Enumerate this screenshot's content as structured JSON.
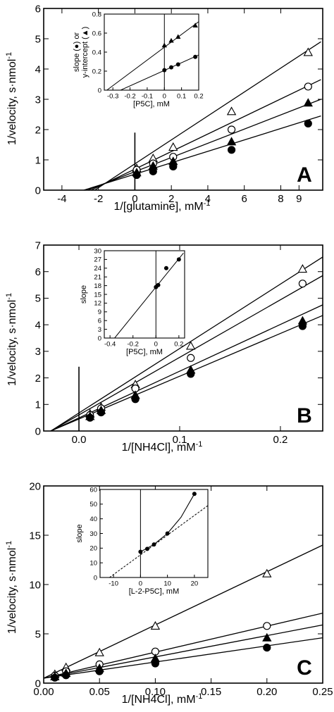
{
  "chart_data": [
    {
      "panel": "A",
      "type": "line",
      "xlabel": "1/[glutamine], mM",
      "xlabel_sup": "-1",
      "ylabel": "1/velocity, s·nmol",
      "ylabel_sup": "-1",
      "xlim": [
        -5,
        10.3
      ],
      "ylim": [
        0,
        6
      ],
      "xticks": [
        -4,
        -2,
        0,
        2,
        4,
        6,
        8
      ],
      "extra_xtick": 9,
      "yticks": [
        0,
        1,
        2,
        3,
        4,
        5,
        6
      ],
      "series": [
        {
          "marker": "open-triangle",
          "x": [
            0.1,
            1,
            2.1,
            5.3,
            9.5
          ],
          "y": [
            0.72,
            1.05,
            1.42,
            2.6,
            4.55
          ],
          "line": [
            [
              -2.2,
              0
            ],
            [
              10.2,
              4.9
            ]
          ]
        },
        {
          "marker": "open-circle",
          "x": [
            0.1,
            1,
            2.1,
            5.3,
            9.5
          ],
          "y": [
            0.67,
            0.88,
            1.1,
            2.0,
            3.42
          ],
          "line": [
            [
              -2.4,
              0
            ],
            [
              10.2,
              3.65
            ]
          ]
        },
        {
          "marker": "filled-triangle",
          "x": [
            0.1,
            1,
            2.1,
            5.3,
            9.5
          ],
          "y": [
            0.58,
            0.8,
            0.95,
            1.6,
            2.88
          ],
          "line": [
            [
              -2.6,
              0
            ],
            [
              10.2,
              3.0
            ]
          ]
        },
        {
          "marker": "filled-circle",
          "x": [
            0.1,
            1,
            2.1,
            5.3,
            9.5
          ],
          "y": [
            0.5,
            0.62,
            0.78,
            1.33,
            2.2
          ],
          "line": [
            [
              -2.8,
              0
            ],
            [
              10.2,
              2.45
            ]
          ]
        }
      ],
      "inset": {
        "type": "line",
        "xlabel": "[P5C], mM",
        "ylabel_line1": "slope (",
        "ylabel_mid": ") or",
        "ylabel_line2": "y-intercept (",
        "ylabel_end": ")",
        "xlim": [
          -0.35,
          0.2
        ],
        "ylim": [
          0,
          0.8
        ],
        "xticks": [
          -0.3,
          -0.2,
          -0.1,
          0,
          0.1,
          0.2
        ],
        "xticklabels": [
          "-0.3",
          "-0.2",
          "-0.1",
          "0",
          "0.1",
          "0.2"
        ],
        "yticks": [
          0,
          0.2,
          0.4,
          0.6,
          0.8
        ],
        "yticklabels": [
          "0",
          "0.2",
          "0.4",
          "0.6",
          "0.8"
        ],
        "series": [
          {
            "marker": "filled-triangle",
            "x": [
              0,
              0.04,
              0.08,
              0.18
            ],
            "y": [
              0.47,
              0.52,
              0.56,
              0.68
            ],
            "line": [
              [
                -0.335,
                0
              ],
              [
                0.2,
                0.72
              ]
            ]
          },
          {
            "marker": "filled-circle",
            "x": [
              0,
              0.04,
              0.08,
              0.18
            ],
            "y": [
              0.21,
              0.24,
              0.27,
              0.35
            ],
            "line": [
              [
                -0.255,
                0
              ],
              [
                0.2,
                0.37
              ]
            ]
          }
        ]
      },
      "panel_label": "A"
    },
    {
      "panel": "B",
      "type": "line",
      "xlabel": "1/[NH4Cl], mM",
      "xlabel_sup": "-1",
      "ylabel": "1/velocity, s·nmol",
      "ylabel_sup": "-1",
      "xlim": [
        -0.035,
        0.242
      ],
      "ylim": [
        0,
        7
      ],
      "xticks": [
        0,
        0.1,
        0.2
      ],
      "xticklabels": [
        "0.0",
        "0.1",
        "0.2"
      ],
      "yticks": [
        0,
        1,
        2,
        3,
        4,
        5,
        6,
        7
      ],
      "series": [
        {
          "marker": "open-triangle",
          "x": [
            0.011,
            0.022,
            0.056,
            0.111,
            0.222
          ],
          "y": [
            0.65,
            0.9,
            1.75,
            3.2,
            6.1
          ],
          "line": [
            [
              -0.028,
              0
            ],
            [
              0.242,
              6.55
            ]
          ]
        },
        {
          "marker": "open-circle",
          "x": [
            0.011,
            0.022,
            0.056,
            0.111,
            0.222
          ],
          "y": [
            0.6,
            0.85,
            1.6,
            2.75,
            5.55
          ],
          "line": [
            [
              -0.028,
              0
            ],
            [
              0.242,
              5.85
            ]
          ]
        },
        {
          "marker": "filled-triangle",
          "x": [
            0.011,
            0.022,
            0.056,
            0.111,
            0.222
          ],
          "y": [
            0.55,
            0.78,
            1.35,
            2.3,
            4.15
          ],
          "line": [
            [
              -0.028,
              0
            ],
            [
              0.242,
              4.75
            ]
          ]
        },
        {
          "marker": "filled-circle",
          "x": [
            0.011,
            0.022,
            0.056,
            0.111,
            0.222
          ],
          "y": [
            0.5,
            0.7,
            1.2,
            2.15,
            3.95
          ],
          "line": [
            [
              -0.028,
              0
            ],
            [
              0.242,
              4.35
            ]
          ]
        }
      ],
      "inset": {
        "type": "line",
        "xlabel": "[P5C], mM",
        "ylabel": "slope",
        "xlim": [
          -0.45,
          0.25
        ],
        "ylim": [
          0,
          30
        ],
        "xticks": [
          -0.4,
          -0.2,
          0,
          0.2
        ],
        "xticklabels": [
          "-0.4",
          "-0.2",
          "0",
          "0.2"
        ],
        "yticks": [
          0,
          3,
          6,
          9,
          12,
          15,
          18,
          21,
          24,
          27,
          30
        ],
        "yticklabels": [
          "0",
          "3",
          "6",
          "9",
          "12",
          "15",
          "18",
          "21",
          "24",
          "27",
          "30"
        ],
        "series": [
          {
            "marker": "filled-circle",
            "x": [
              0,
              0.02,
              0.09,
              0.2
            ],
            "y": [
              17.5,
              18.2,
              24.0,
              27.0
            ],
            "line": [
              [
                -0.36,
                0
              ],
              [
                0.24,
                29.2
              ]
            ]
          }
        ]
      },
      "panel_label": "B"
    },
    {
      "panel": "C",
      "type": "line",
      "xlabel": "1/[NH4Cl], mM",
      "xlabel_sup": "-1",
      "ylabel": "1/velocity, s·nmol",
      "ylabel_sup": "-1",
      "xlim": [
        0,
        0.25
      ],
      "ylim": [
        0,
        20
      ],
      "xticks": [
        0,
        0.05,
        0.1,
        0.15,
        0.2,
        0.25
      ],
      "xticklabels": [
        "0.00",
        "0.05",
        "0.10",
        "0.15",
        "0.20",
        "0.25"
      ],
      "yticks": [
        0,
        5,
        10,
        15,
        20
      ],
      "series": [
        {
          "marker": "open-triangle",
          "x": [
            0.01,
            0.02,
            0.05,
            0.1,
            0.2
          ],
          "y": [
            0.9,
            1.6,
            3.1,
            5.8,
            11.1
          ],
          "line": [
            [
              0,
              0.5
            ],
            [
              0.25,
              14.0
            ]
          ]
        },
        {
          "marker": "open-circle",
          "x": [
            0.01,
            0.02,
            0.05,
            0.1,
            0.2
          ],
          "y": [
            0.75,
            1.2,
            1.9,
            3.2,
            5.8
          ],
          "line": [
            [
              0,
              0.5
            ],
            [
              0.25,
              7.1
            ]
          ]
        },
        {
          "marker": "filled-triangle",
          "x": [
            0.01,
            0.02,
            0.05,
            0.1,
            0.2
          ],
          "y": [
            0.65,
            1.0,
            1.5,
            2.5,
            4.6
          ],
          "line": [
            [
              0,
              0.5
            ],
            [
              0.25,
              5.9
            ]
          ]
        },
        {
          "marker": "filled-circle",
          "x": [
            0.01,
            0.02,
            0.05,
            0.1,
            0.2
          ],
          "y": [
            0.55,
            0.8,
            1.2,
            2.0,
            3.6
          ],
          "line": [
            [
              0,
              0.5
            ],
            [
              0.25,
              4.6
            ]
          ]
        }
      ],
      "inset": {
        "type": "line",
        "xlabel": "[L-2-P5C], mM",
        "ylabel": "slope",
        "xlim": [
          -15,
          25
        ],
        "ylim": [
          0,
          60
        ],
        "xticks": [
          -10,
          0,
          10,
          20
        ],
        "xticklabels": [
          "-10",
          "0",
          "10",
          "20"
        ],
        "yticks": [
          0,
          10,
          20,
          30,
          40,
          50,
          60
        ],
        "yticklabels": [
          "0",
          "10",
          "20",
          "30",
          "40",
          "50",
          "60"
        ],
        "series": [
          {
            "marker": "filled-circle",
            "x": [
              0,
              2.5,
              5,
              10,
              20
            ],
            "y": [
              17.5,
              19.5,
              22.5,
              30,
              57
            ],
            "curve": [
              [
                0,
                17.5
              ],
              [
                5,
                22.5
              ],
              [
                10,
                30
              ],
              [
                15,
                41
              ],
              [
                20,
                57
              ]
            ],
            "dashed_line": [
              [
                -11.5,
                0
              ],
              [
                25,
                49
              ]
            ]
          }
        ]
      },
      "panel_label": "C"
    }
  ]
}
